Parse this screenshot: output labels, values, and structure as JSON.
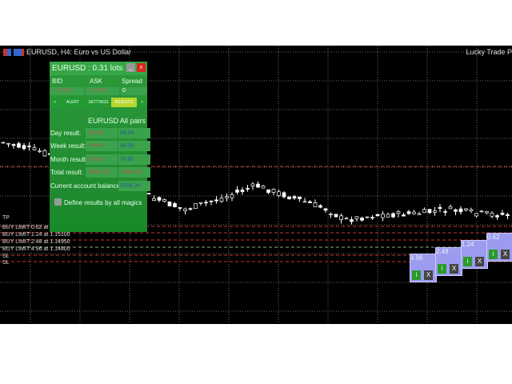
{
  "chart": {
    "title": "EURUSD, H4:  Euro vs US Dollar",
    "right_title": "Lucky Trade P"
  },
  "panel": {
    "title": "EURUSD : 0.31 lots",
    "minimize": "_",
    "close": "x",
    "bid_label": "BID",
    "ask_label": "ASK",
    "spread_label": "Spread",
    "bid": "1.15397",
    "ask": "1.15397",
    "spread": "0",
    "tabs": {
      "prev": "<",
      "alert": "ALERT",
      "settings": "SETTINGS",
      "results": "RESULTS",
      "next": ">"
    },
    "col_symbol": "EURUSD",
    "col_all": "All pairs",
    "rows": [
      {
        "label": "Day result:",
        "symbol": "-34.46",
        "all": "69.99"
      },
      {
        "label": "Week result:",
        "symbol": "-34.46",
        "all": "69.99"
      },
      {
        "label": "Month result:",
        "symbol": "-33.54",
        "all": "78.80"
      },
      {
        "label": "Total result:",
        "symbol": "-6393.29",
        "all": "-6340.91"
      }
    ],
    "balance_label": "Current account balance",
    "balance": "3598.34",
    "checkbox_label": "Define results by all magics",
    "checkbox_checked": false
  },
  "orders": [
    "TP",
    "BUY LIMIT 0.62 at",
    "BUY LIMIT 1.24 at 1.15100",
    "BUY LIMIT 2.48 at 1.14950",
    "BUY LIMIT 4.96 at 1.14800",
    "SL",
    "SL"
  ],
  "order_boxes": [
    {
      "lots": "4.96"
    },
    {
      "lots": "2.48"
    },
    {
      "lots": "1.24"
    },
    {
      "lots": "0.62"
    }
  ],
  "order_box_buttons": {
    "info": "i",
    "close": "X"
  }
}
